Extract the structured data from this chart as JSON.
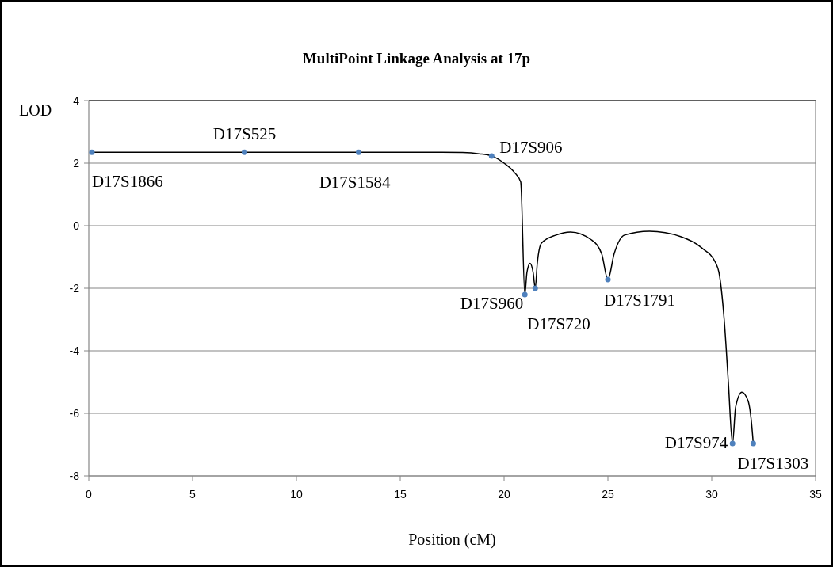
{
  "chart_data": {
    "type": "line",
    "title": "MultiPoint Linkage Analysis at 17p",
    "xlabel": "Position (cM)",
    "ylabel": "LOD",
    "series": [
      {
        "color": "#000000",
        "marker": "none",
        "x": [
          0.15,
          7.5,
          13,
          17,
          18,
          18.8,
          19.4,
          20,
          20.5,
          20.8,
          21.0,
          21.1,
          21.25,
          21.4,
          21.5,
          21.6,
          21.8,
          22.5,
          23.2,
          24.2,
          24.7,
          25.0,
          25.3,
          25.8,
          27,
          28.5,
          29.5,
          30.2,
          30.35,
          30.6,
          30.8,
          31.0,
          31.15,
          31.45,
          31.75,
          31.9,
          32
        ],
        "values": [
          2.35,
          2.35,
          2.35,
          2.35,
          2.34,
          2.3,
          2.23,
          2.0,
          1.7,
          1.4,
          -2.2,
          -1.5,
          -1.2,
          -1.5,
          -2.0,
          -1.2,
          -0.56,
          -0.3,
          -0.2,
          -0.45,
          -0.9,
          -1.72,
          -0.9,
          -0.3,
          -0.18,
          -0.35,
          -0.7,
          -1.2,
          -1.5,
          -3,
          -5,
          -6.96,
          -5.8,
          -5.32,
          -5.6,
          -6.2,
          -6.96
        ]
      },
      {
        "type": "scatter",
        "color": "#4f81bd",
        "marker": "circle",
        "x": [
          0.15,
          7.5,
          13,
          19.4,
          21.0,
          21.5,
          25.0,
          31.0,
          32
        ],
        "values": [
          2.35,
          2.35,
          2.35,
          2.23,
          -2.2,
          -2.0,
          -1.72,
          -6.96,
          -6.96
        ]
      }
    ],
    "annotations": [
      {
        "text": "D17S1866",
        "x": 0.15,
        "y": 2.35
      },
      {
        "text": "D17S525",
        "x": 7.5,
        "y": 2.35
      },
      {
        "text": "D17S1584",
        "x": 13,
        "y": 2.35
      },
      {
        "text": "D17S906",
        "x": 19.4,
        "y": 2.23
      },
      {
        "text": "D17S960",
        "x": 21.0,
        "y": -2.2
      },
      {
        "text": "D17S720",
        "x": 21.5,
        "y": -2.0
      },
      {
        "text": "D17S1791",
        "x": 25.0,
        "y": -1.72
      },
      {
        "text": "D17S974",
        "x": 31.0,
        "y": -6.96
      },
      {
        "text": "D17S1303",
        "x": 32,
        "y": -6.96
      }
    ],
    "xlim": [
      0,
      35
    ],
    "xticks": [
      0,
      5,
      10,
      15,
      20,
      25,
      30,
      35
    ],
    "ylim": [
      -8,
      4
    ],
    "yticks": [
      -8,
      -6,
      -4,
      -2,
      0,
      2,
      4
    ],
    "grid": "y"
  }
}
